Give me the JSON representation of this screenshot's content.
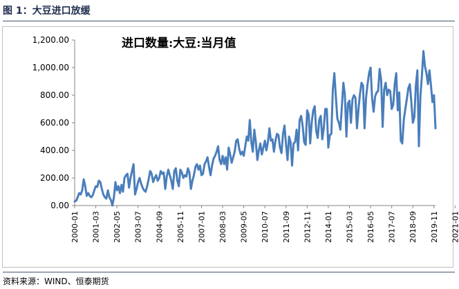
{
  "figure": {
    "title": "图 1：大豆进口放缓",
    "source": "资料来源：WIND、恒泰期货"
  },
  "colors": {
    "line": "#4a7ebb",
    "axis": "#868686",
    "rule": "#44546a"
  },
  "chart_data": {
    "type": "line",
    "title": "进口数量:大豆:当月值",
    "xlabel": "",
    "ylabel": "",
    "ylim": [
      0,
      1200
    ],
    "yticks": [
      "0.00",
      "200.00",
      "400.00",
      "600.00",
      "800.00",
      "1,000.00",
      "1,200.00"
    ],
    "xticks": [
      "2000-01",
      "2001-03",
      "2002-05",
      "2003-07",
      "2004-09",
      "2005-11",
      "2007-01",
      "2008-03",
      "2009-05",
      "2010-07",
      "2011-09",
      "2012-11",
      "2014-01",
      "2015-03",
      "2016-05",
      "2017-07",
      "2018-09",
      "2019-11",
      "2021-01"
    ],
    "grid": false,
    "legend": "none",
    "x_start": "2000-01",
    "x_end": "2021-03",
    "series": [
      {
        "values": [
          30,
          35,
          60,
          90,
          80,
          110,
          190,
          140,
          70,
          90,
          70,
          60,
          75,
          110,
          140,
          135,
          180,
          170,
          120,
          80,
          60,
          50,
          110,
          60,
          40,
          0,
          60,
          170,
          110,
          140,
          90,
          150,
          100,
          200,
          220,
          230,
          130,
          200,
          250,
          300,
          80,
          120,
          170,
          200,
          160,
          130,
          110,
          100,
          140,
          190,
          250,
          230,
          170,
          200,
          220,
          180,
          200,
          250,
          230,
          240,
          120,
          210,
          260,
          220,
          180,
          120,
          250,
          270,
          180,
          140,
          260,
          240,
          200,
          220,
          210,
          270,
          240,
          120,
          180,
          220,
          280,
          300,
          260,
          290,
          220,
          230,
          300,
          320,
          350,
          280,
          220,
          290,
          340,
          360,
          390,
          430,
          330,
          300,
          360,
          300,
          350,
          260,
          420,
          370,
          310,
          350,
          390,
          470,
          480,
          410,
          370,
          390,
          360,
          430,
          500,
          470,
          620,
          460,
          390,
          550,
          460,
          330,
          400,
          450,
          370,
          420,
          470,
          400,
          460,
          560,
          470,
          480,
          390,
          470,
          520,
          510,
          420,
          380,
          520,
          580,
          440,
          330,
          500,
          460,
          290,
          450,
          460,
          550,
          400,
          620,
          650,
          580,
          460,
          440,
          690,
          660,
          450,
          600,
          690,
          720,
          540,
          490,
          620,
          650,
          480,
          560,
          700,
          700,
          420,
          510,
          520,
          840,
          960,
          790,
          630,
          600,
          550,
          720,
          890,
          800,
          500,
          740,
          760,
          600,
          770,
          800,
          780,
          560,
          700,
          810,
          890,
          870,
          560,
          780,
          880,
          960,
          1000,
          780,
          680,
          790,
          820,
          830,
          990,
          910,
          570,
          840,
          890,
          800,
          840,
          830,
          700,
          730,
          880,
          960,
          690,
          820,
          470,
          450,
          620,
          700,
          770,
          850,
          880,
          750,
          600,
          640,
          870,
          980,
          430,
          790,
          940,
          1120,
          1010,
          960,
          880,
          980,
          870,
          750,
          800,
          560
        ]
      }
    ]
  }
}
